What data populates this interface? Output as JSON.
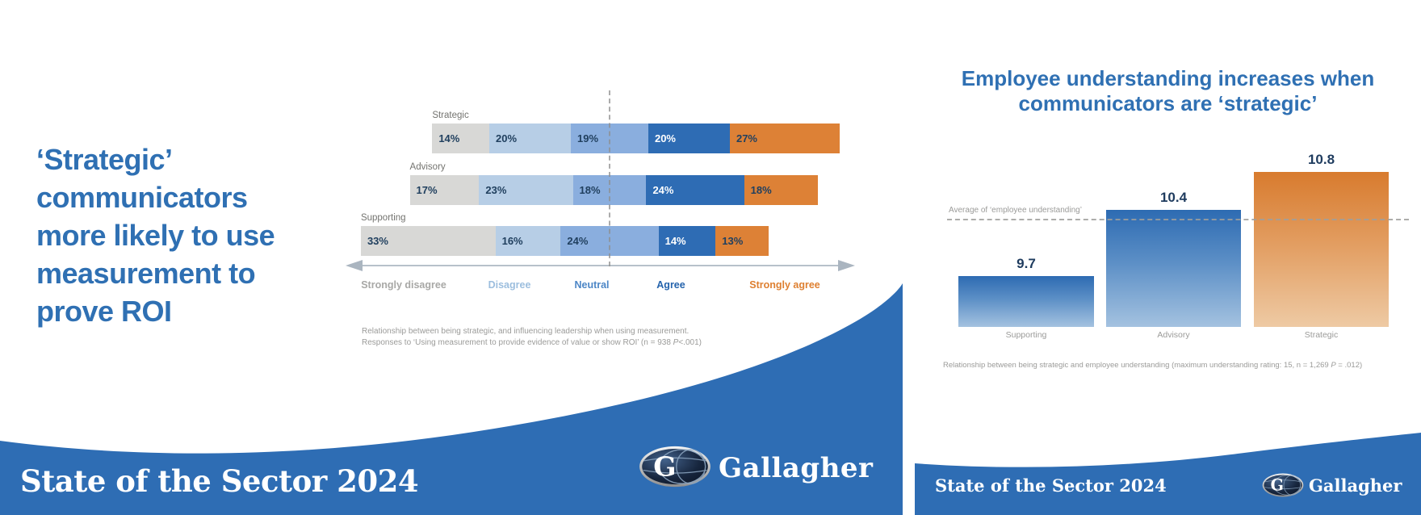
{
  "left_slide": {
    "title": "‘Strategic’ communicators more likely to use measurement to prove ROI",
    "caption": {
      "line1": "Relationship between being strategic, and influencing leadership when using measurement.",
      "line2_pre": "Responses to ‘Using measurement to provide evidence of value or show ROI’ (n = 938 ",
      "line2_italic": "P",
      "line2_post": "<.001)"
    },
    "footer_text": "State of the Sector 2024",
    "brand": "Gallagher"
  },
  "right_slide": {
    "title": "Employee understanding increases when communicators are ‘strategic’",
    "caption": {
      "pre": "Relationship between being strategic and employee understanding (maximum understanding rating: 15, n = 1,269 ",
      "italic": "P",
      "post": " = .012)"
    },
    "footer_text": "State of the Sector 2024",
    "brand": "Gallagher"
  },
  "colors": {
    "title_blue": "#2f70b3",
    "footer_blue": "#2e6db4",
    "strongly_disagree": "#d8d8d6",
    "disagree": "#b7cee6",
    "neutral": "#8aaede",
    "agree": "#2e6cb4",
    "strongly_agree": "#dd8136"
  },
  "chart_data": [
    {
      "type": "bar",
      "subtype": "horizontal-diverging-stacked-likert",
      "categories": [
        "Strategic",
        "Advisory",
        "Supporting"
      ],
      "series": [
        {
          "name": "Strongly disagree",
          "color": "#d8d8d6",
          "values": [
            14,
            17,
            33
          ]
        },
        {
          "name": "Disagree",
          "color": "#b7cee6",
          "values": [
            20,
            23,
            16
          ]
        },
        {
          "name": "Neutral",
          "color": "#8aaede",
          "values": [
            19,
            18,
            24
          ]
        },
        {
          "name": "Agree",
          "color": "#2e6cb4",
          "values": [
            20,
            24,
            14
          ]
        },
        {
          "name": "Strongly agree",
          "color": "#dd8136",
          "values": [
            27,
            18,
            13
          ]
        }
      ],
      "value_suffix": "%",
      "legend": [
        {
          "label": "Strongly disagree",
          "color": "#a8a8a6"
        },
        {
          "label": "Disagree",
          "color": "#9cbede"
        },
        {
          "label": "Neutral",
          "color": "#4c86c6"
        },
        {
          "label": "Agree",
          "color": "#2463ac"
        },
        {
          "label": "Strongly agree",
          "color": "#de7f30"
        }
      ]
    },
    {
      "type": "bar",
      "categories": [
        "Supporting",
        "Advisory",
        "Strategic"
      ],
      "values": [
        9.7,
        10.4,
        10.8
      ],
      "bar_styles": [
        "blue",
        "blue",
        "orange"
      ],
      "average_line": {
        "label": "Average of ‘employee understanding’",
        "value": 10.3
      },
      "ylim": [
        9.16,
        11.2
      ]
    }
  ]
}
